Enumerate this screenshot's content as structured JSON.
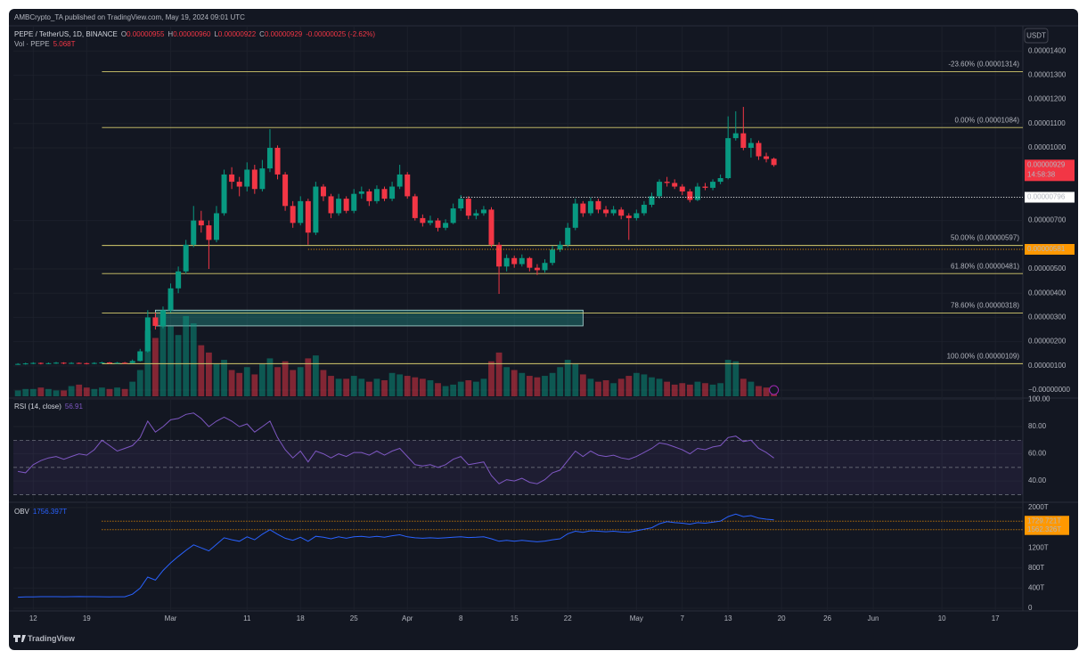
{
  "header": {
    "publisher": "AMBCrypto_TA published on TradingView.com, May 19, 2024 09:01 UTC",
    "currency": "USDT",
    "footer": "TradingView"
  },
  "chart_data": {
    "type": "candlestick",
    "title": "PEPE / TetherUS, 1D, BINANCE",
    "ohlc_legend": [
      {
        "key": "O",
        "value": "0.00000955"
      },
      {
        "key": "H",
        "value": "0.00000960"
      },
      {
        "key": "L",
        "value": "0.00000922"
      },
      {
        "key": "C",
        "value": "0.00000929"
      }
    ],
    "change": "-0.00000025 (-2.62%)",
    "up_color": "#089981",
    "down_color": "#f23645",
    "grid": true,
    "open": [
      1.07e-06,
      1.08e-06,
      1.1e-06,
      1.12e-06,
      1.09e-06,
      1.11e-06,
      1.13e-06,
      1.1e-06,
      1.12e-06,
      1.11e-06,
      1.09e-06,
      1.12e-06,
      1.14e-06,
      1.11e-06,
      1.13e-06,
      1.12e-06,
      1.2e-06,
      1.6e-06,
      3e-06,
      2.65e-06,
      3.3e-06,
      4.2e-06,
      4.9e-06,
      6e-06,
      7e-06,
      6.8e-06,
      6.2e-06,
      7.3e-06,
      8.9e-06,
      8.6e-06,
      8.4e-06,
      9.1e-06,
      8.3e-06,
      9.15e-06,
      1e-05,
      8.9e-06,
      7.6e-06,
      6.9e-06,
      7.8e-06,
      6.5e-06,
      8.4e-06,
      8e-06,
      7.3e-06,
      7.9e-06,
      7.4e-06,
      8.1e-06,
      8.2e-06,
      7.8e-06,
      8.3e-06,
      7.9e-06,
      8.4e-06,
      8.9e-06,
      8e-06,
      7.1e-06,
      6.9e-06,
      7e-06,
      6.7e-06,
      6.9e-06,
      7.5e-06,
      7.9e-06,
      7.2e-06,
      7.3e-06,
      7.45e-06,
      6e-06,
      5.1e-06,
      5.45e-06,
      5.2e-06,
      5.45e-06,
      5.05e-06,
      4.95e-06,
      5.25e-06,
      5.8e-06,
      6e-06,
      6.7e-06,
      7.7e-06,
      7.3e-06,
      7.8e-06,
      7.45e-06,
      7.3e-06,
      7.45e-06,
      7.2e-06,
      7.1e-06,
      7.3e-06,
      7.65e-06,
      8e-06,
      8.6e-06,
      8.55e-06,
      8.4e-06,
      8.2e-06,
      7.85e-06,
      8.4e-06,
      8.35e-06,
      8.6e-06,
      8.75e-06,
      1.04e-05,
      1.06e-05,
      1e-05,
      1.02e-05,
      9.65e-06,
      9.55e-06
    ],
    "high": [
      1.11e-06,
      1.13e-06,
      1.15e-06,
      1.14e-06,
      1.14e-06,
      1.16e-06,
      1.15e-06,
      1.15e-06,
      1.14e-06,
      1.13e-06,
      1.15e-06,
      1.17e-06,
      1.16e-06,
      1.16e-06,
      1.16e-06,
      1.26e-06,
      1.7e-06,
      3.3e-06,
      3.2e-06,
      3.45e-06,
      4.4e-06,
      5.1e-06,
      6.2e-06,
      7.6e-06,
      7.4e-06,
      7e-06,
      7.6e-06,
      9.1e-06,
      9.2e-06,
      8.8e-06,
      9.4e-06,
      9.3e-06,
      9.5e-06,
      1.077e-05,
      1.01e-05,
      9e-06,
      7.8e-06,
      8e-06,
      7.9e-06,
      8.6e-06,
      8.5e-06,
      8.1e-06,
      8.1e-06,
      8e-06,
      8.3e-06,
      8.4e-06,
      8.3e-06,
      8.45e-06,
      8.4e-06,
      8.6e-06,
      9.3e-06,
      9e-06,
      8.1e-06,
      7.25e-06,
      7.2e-06,
      7.1e-06,
      7.05e-06,
      7.7e-06,
      8.05e-06,
      8e-06,
      7.45e-06,
      7.6e-06,
      7.55e-06,
      6.1e-06,
      5.6e-06,
      5.55e-06,
      5.6e-06,
      5.5e-06,
      5.2e-06,
      5.4e-06,
      5.95e-06,
      6.15e-06,
      6.9e-06,
      7.9e-06,
      7.8e-06,
      7.95e-06,
      7.9e-06,
      7.6e-06,
      7.6e-06,
      7.55e-06,
      7.3e-06,
      7.45e-06,
      7.8e-06,
      8.15e-06,
      8.7e-06,
      8.8e-06,
      8.7e-06,
      8.5e-06,
      8.3e-06,
      8.55e-06,
      8.55e-06,
      8.7e-06,
      8.9e-06,
      1.13e-05,
      1.151e-05,
      1.169e-05,
      1.04e-05,
      1.03e-05,
      9.8e-06,
      9.6e-06
    ],
    "low": [
      1.04e-06,
      1.05e-06,
      1.07e-06,
      1.06e-06,
      1.07e-06,
      1.08e-06,
      1.07e-06,
      1.08e-06,
      1.08e-06,
      1.06e-06,
      1.07e-06,
      1.1e-06,
      1.08e-06,
      1.09e-06,
      1.09e-06,
      1.1e-06,
      1.18e-06,
      1.55e-06,
      2.5e-06,
      2.55e-06,
      3.2e-06,
      4e-06,
      4.8e-06,
      5.9e-06,
      6.5e-06,
      5e-06,
      6.1e-06,
      7.2e-06,
      8.3e-06,
      8e-06,
      8.2e-06,
      8.1e-06,
      8.2e-06,
      9e-06,
      8.7e-06,
      7.4e-06,
      6.7e-06,
      6.8e-06,
      6e-06,
      6.4e-06,
      7.8e-06,
      7.1e-06,
      7.2e-06,
      7.3e-06,
      7.3e-06,
      7.9e-06,
      7.6e-06,
      7.7e-06,
      7.8e-06,
      7.8e-06,
      8.3e-06,
      7.9e-06,
      7e-06,
      6.75e-06,
      6.8e-06,
      6.55e-06,
      6.6e-06,
      6.85e-06,
      7.4e-06,
      7.05e-06,
      7.05e-06,
      7.2e-06,
      5.9e-06,
      3.97e-06,
      4.9e-06,
      5.05e-06,
      5.1e-06,
      4.9e-06,
      4.75e-06,
      4.85e-06,
      5.15e-06,
      5.7e-06,
      5.9e-06,
      6.6e-06,
      7.15e-06,
      7.2e-06,
      7.3e-06,
      7.15e-06,
      7.2e-06,
      7.05e-06,
      6.2e-06,
      7e-06,
      7.2e-06,
      7.55e-06,
      7.9e-06,
      8.4e-06,
      8.3e-06,
      8.05e-06,
      7.75e-06,
      7.8e-06,
      8.25e-06,
      8.25e-06,
      8.5e-06,
      8.7e-06,
      1.03e-05,
      9.9e-06,
      9.6e-06,
      9.5e-06,
      9.4e-06,
      9.22e-06
    ],
    "close": [
      1.08e-06,
      1.1e-06,
      1.12e-06,
      1.09e-06,
      1.11e-06,
      1.13e-06,
      1.1e-06,
      1.12e-06,
      1.11e-06,
      1.09e-06,
      1.12e-06,
      1.14e-06,
      1.11e-06,
      1.13e-06,
      1.12e-06,
      1.2e-06,
      1.6e-06,
      3e-06,
      2.65e-06,
      3.3e-06,
      4.2e-06,
      4.9e-06,
      6e-06,
      7e-06,
      6.8e-06,
      6.2e-06,
      7.3e-06,
      8.9e-06,
      8.6e-06,
      8.4e-06,
      9.1e-06,
      8.3e-06,
      9.15e-06,
      1e-05,
      8.9e-06,
      7.6e-06,
      6.9e-06,
      7.8e-06,
      6.5e-06,
      8.4e-06,
      8e-06,
      7.3e-06,
      7.9e-06,
      7.4e-06,
      8.1e-06,
      8.2e-06,
      7.8e-06,
      8.3e-06,
      7.9e-06,
      8.4e-06,
      8.9e-06,
      8e-06,
      7.1e-06,
      6.9e-06,
      7e-06,
      6.7e-06,
      6.9e-06,
      7.5e-06,
      7.9e-06,
      7.2e-06,
      7.3e-06,
      7.45e-06,
      6e-06,
      5.1e-06,
      5.45e-06,
      5.2e-06,
      5.45e-06,
      5.05e-06,
      4.95e-06,
      5.25e-06,
      5.8e-06,
      6e-06,
      6.7e-06,
      7.7e-06,
      7.3e-06,
      7.8e-06,
      7.45e-06,
      7.3e-06,
      7.45e-06,
      7.2e-06,
      7.1e-06,
      7.3e-06,
      7.65e-06,
      8e-06,
      8.6e-06,
      8.55e-06,
      8.4e-06,
      8.2e-06,
      7.85e-06,
      8.4e-06,
      8.35e-06,
      8.6e-06,
      8.75e-06,
      1.04e-05,
      1.06e-05,
      1e-05,
      1.02e-05,
      9.65e-06,
      9.54e-06,
      9.29e-06
    ],
    "ylim": [
      -3.3e-07,
      1.5e-05
    ],
    "yticks": [
      {
        "value": 1.4e-05,
        "label": "0.00001400"
      },
      {
        "value": 1.3e-05,
        "label": "0.00001300"
      },
      {
        "value": 1.2e-05,
        "label": "0.00001200"
      },
      {
        "value": 1.1e-05,
        "label": "0.00001100"
      },
      {
        "value": 1e-05,
        "label": "0.00001000"
      },
      {
        "value": 7e-06,
        "label": "0.00000700"
      },
      {
        "value": 5e-06,
        "label": "0.00000500"
      },
      {
        "value": 4e-06,
        "label": "0.00000400"
      },
      {
        "value": 3e-06,
        "label": "0.00000300"
      },
      {
        "value": 2e-06,
        "label": "0.00000200"
      },
      {
        "value": 1e-06,
        "label": "0.00000100"
      },
      {
        "value": 0,
        "label": "−0.00000000"
      }
    ],
    "xlim": [
      -0.6,
      131.6
    ],
    "xticks": [
      {
        "value": 2,
        "label": "12"
      },
      {
        "value": 9,
        "label": "19"
      },
      {
        "value": 20,
        "label": "Mar"
      },
      {
        "value": 30,
        "label": "11"
      },
      {
        "value": 37,
        "label": "18"
      },
      {
        "value": 44,
        "label": "25"
      },
      {
        "value": 51,
        "label": "Apr"
      },
      {
        "value": 58,
        "label": "8"
      },
      {
        "value": 65,
        "label": "15"
      },
      {
        "value": 72,
        "label": "22"
      },
      {
        "value": 81,
        "label": "May"
      },
      {
        "value": 87,
        "label": "7"
      },
      {
        "value": 93,
        "label": "13"
      },
      {
        "value": 100,
        "label": "20"
      },
      {
        "value": 106,
        "label": "26"
      },
      {
        "value": 112,
        "label": "Jun"
      },
      {
        "value": 121,
        "label": "10"
      },
      {
        "value": 128,
        "label": "17"
      }
    ],
    "price_labels": [
      {
        "value": 9.29e-06,
        "label": "0.00000929",
        "sublabel": "14:58:38",
        "color": "#f23645"
      },
      {
        "value": 7.96e-06,
        "label": "0.00000796",
        "color": "#ffffff",
        "start": 58
      },
      {
        "value": 5.81e-06,
        "label": "0.00000581",
        "color": "#ff9800",
        "start": 38
      }
    ],
    "fib": {
      "color": "#d6cc6e",
      "start": 11,
      "levels": [
        {
          "value": 1.314e-05,
          "label": "-23.60% (0.00001314)"
        },
        {
          "value": 1.084e-05,
          "label": "0.00% (0.00001084)"
        },
        {
          "value": 5.97e-06,
          "label": "50.00% (0.00000597)"
        },
        {
          "value": 4.81e-06,
          "label": "61.80% (0.00000481)"
        },
        {
          "value": 3.18e-06,
          "label": "78.60% (0.00000318)"
        },
        {
          "value": 1.09e-06,
          "label": "100.00% (0.00000109)"
        }
      ]
    },
    "zone": {
      "top": 3.3e-06,
      "bottom": 2.65e-06,
      "start": 18,
      "end": 74,
      "color": "#26a69a"
    },
    "volume": {
      "title": "Vol · PEPE",
      "legend_value": "5.068T",
      "values": [
        4,
        5,
        5,
        6,
        5,
        4,
        4,
        7,
        8,
        6,
        5,
        6,
        5,
        6,
        5,
        10,
        18,
        45,
        40,
        58,
        48,
        42,
        55,
        50,
        35,
        30,
        22,
        25,
        18,
        16,
        20,
        15,
        22,
        26,
        20,
        24,
        18,
        20,
        26,
        28,
        18,
        14,
        12,
        12,
        14,
        12,
        10,
        12,
        11,
        16,
        15,
        14,
        13,
        12,
        11,
        9,
        7,
        8,
        10,
        11,
        10,
        12,
        24,
        30,
        20,
        18,
        16,
        14,
        13,
        14,
        16,
        20,
        25,
        22,
        15,
        12,
        10,
        11,
        9,
        12,
        14,
        16,
        15,
        13,
        12,
        10,
        8,
        9,
        8,
        10,
        9,
        8,
        9,
        25,
        24,
        12,
        10,
        7,
        6,
        5.068
      ]
    },
    "rsi": {
      "type": "line",
      "title": "RSI (14, close)",
      "color": "#7e57c2",
      "ylim": [
        25,
        101
      ],
      "yticks": [
        {
          "value": 100,
          "label": "100.00"
        },
        {
          "value": 80,
          "label": "80.00"
        },
        {
          "value": 60,
          "label": "60.00"
        },
        {
          "value": 40,
          "label": "40.00"
        }
      ],
      "bands": [
        70,
        50,
        30
      ],
      "values": [
        47,
        46,
        52,
        55,
        57,
        58,
        56,
        58,
        60,
        59,
        63,
        70,
        66,
        62,
        64,
        66,
        72,
        84,
        76,
        80,
        85,
        86,
        89,
        90,
        86,
        80,
        84,
        87,
        84,
        80,
        82,
        76,
        80,
        84,
        72,
        63,
        57,
        62,
        54,
        62,
        60,
        57,
        60,
        58,
        61,
        61,
        59,
        62,
        59,
        62,
        64,
        58,
        52,
        51,
        52,
        50,
        52,
        56,
        58,
        52,
        53,
        54,
        44,
        38,
        41,
        40,
        42,
        39,
        38,
        41,
        46,
        48,
        55,
        62,
        58,
        62,
        59,
        58,
        59,
        57,
        56,
        58,
        61,
        64,
        68,
        67,
        65,
        63,
        60,
        64,
        63,
        65,
        66,
        72,
        73,
        69,
        70,
        64,
        61,
        56.91
      ]
    },
    "obv": {
      "type": "line",
      "title": "OBV",
      "legend_value": "1756.397T",
      "color": "#2962ff",
      "ylim": [
        -53,
        2088
      ],
      "yticks": [
        {
          "value": 2000,
          "label": "2000T"
        },
        {
          "value": 1200,
          "label": "1200T"
        },
        {
          "value": 800,
          "label": "800T"
        },
        {
          "value": 400,
          "label": "400T"
        },
        0
      ],
      "levels": [
        {
          "value": 1729.721,
          "label": "1729.721T"
        },
        {
          "value": 1562.326,
          "label": "1562.326T"
        }
      ],
      "level_color": "#ff9800",
      "values": [
        220,
        225,
        225,
        230,
        230,
        230,
        228,
        230,
        232,
        230,
        230,
        228,
        226,
        228,
        228,
        280,
        400,
        620,
        560,
        750,
        900,
        1030,
        1150,
        1260,
        1200,
        1140,
        1270,
        1400,
        1360,
        1330,
        1420,
        1360,
        1470,
        1560,
        1470,
        1390,
        1350,
        1410,
        1330,
        1430,
        1410,
        1380,
        1420,
        1390,
        1420,
        1430,
        1410,
        1430,
        1410,
        1440,
        1460,
        1420,
        1400,
        1390,
        1400,
        1390,
        1400,
        1410,
        1420,
        1405,
        1410,
        1420,
        1380,
        1330,
        1350,
        1330,
        1350,
        1335,
        1320,
        1335,
        1360,
        1380,
        1480,
        1530,
        1510,
        1540,
        1530,
        1520,
        1530,
        1515,
        1510,
        1540,
        1570,
        1600,
        1680,
        1720,
        1700,
        1690,
        1670,
        1700,
        1690,
        1710,
        1730,
        1820,
        1870,
        1820,
        1840,
        1790,
        1770,
        1756.397
      ]
    }
  }
}
